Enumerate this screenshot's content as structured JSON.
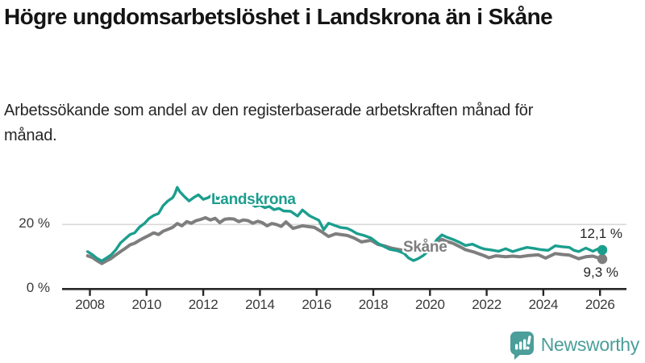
{
  "header": {
    "title": "Högre ungdomsarbetslöshet i Landskrona än i Skåne",
    "subtitle": "Arbetssökande som andel av den registerbaserade arbetskraften månad för månad."
  },
  "chart_data": {
    "type": "line",
    "title": "Högre ungdomsarbetslöshet i Landskrona än i Skåne",
    "subtitle": "Arbetssökande som andel av den registerbaserade arbetskraften månad för månad.",
    "unit": "%",
    "xlim": [
      2007.75,
      2026.6
    ],
    "ylim": [
      0,
      34
    ],
    "grid": "y-20-only",
    "x_ticks": [
      2008,
      2010,
      2012,
      2014,
      2016,
      2018,
      2020,
      2022,
      2024,
      2026
    ],
    "y_ticks": [
      {
        "value": 20,
        "label": "20 %"
      },
      {
        "value": 0,
        "label": "0 %"
      }
    ],
    "series": [
      {
        "name": "Landskrona",
        "color": "#1b9e8e",
        "end_label": "12,1 %",
        "end_value": 12.1,
        "points": [
          [
            2007.92,
            11.6
          ],
          [
            2008.08,
            10.7
          ],
          [
            2008.25,
            9.5
          ],
          [
            2008.42,
            8.7
          ],
          [
            2008.58,
            9.6
          ],
          [
            2008.75,
            10.6
          ],
          [
            2008.92,
            12.2
          ],
          [
            2009.08,
            14.3
          ],
          [
            2009.25,
            15.6
          ],
          [
            2009.42,
            16.9
          ],
          [
            2009.58,
            17.4
          ],
          [
            2009.75,
            19.2
          ],
          [
            2009.92,
            20.3
          ],
          [
            2010.08,
            21.8
          ],
          [
            2010.25,
            22.8
          ],
          [
            2010.42,
            23.4
          ],
          [
            2010.58,
            25.8
          ],
          [
            2010.75,
            27.3
          ],
          [
            2010.92,
            28.3
          ],
          [
            2011.0,
            29.5
          ],
          [
            2011.08,
            31.5
          ],
          [
            2011.17,
            30.2
          ],
          [
            2011.33,
            28.7
          ],
          [
            2011.5,
            27.3
          ],
          [
            2011.67,
            28.4
          ],
          [
            2011.83,
            29.2
          ],
          [
            2012.0,
            27.8
          ],
          [
            2012.17,
            28.3
          ],
          [
            2012.33,
            29.3
          ],
          [
            2012.5,
            28.0
          ],
          [
            2012.67,
            28.6
          ],
          [
            2012.83,
            27.4
          ],
          [
            2013.0,
            27.8
          ],
          [
            2013.17,
            26.7
          ],
          [
            2013.33,
            27.3
          ],
          [
            2013.5,
            26.2
          ],
          [
            2013.67,
            26.6
          ],
          [
            2013.83,
            25.6
          ],
          [
            2014.0,
            26.0
          ],
          [
            2014.17,
            25.2
          ],
          [
            2014.33,
            25.6
          ],
          [
            2014.5,
            24.6
          ],
          [
            2014.67,
            25.0
          ],
          [
            2014.83,
            24.2
          ],
          [
            2015.08,
            24.1
          ],
          [
            2015.33,
            22.6
          ],
          [
            2015.5,
            24.5
          ],
          [
            2015.75,
            22.7
          ],
          [
            2016.08,
            21.3
          ],
          [
            2016.25,
            18.4
          ],
          [
            2016.42,
            20.4
          ],
          [
            2016.58,
            19.9
          ],
          [
            2016.83,
            19.1
          ],
          [
            2017.08,
            18.8
          ],
          [
            2017.25,
            18.1
          ],
          [
            2017.42,
            17.2
          ],
          [
            2017.67,
            16.6
          ],
          [
            2017.92,
            15.8
          ],
          [
            2018.17,
            14.1
          ],
          [
            2018.33,
            13.4
          ],
          [
            2018.58,
            12.3
          ],
          [
            2018.83,
            11.9
          ],
          [
            2019.08,
            11.1
          ],
          [
            2019.25,
            9.6
          ],
          [
            2019.42,
            8.8
          ],
          [
            2019.58,
            9.4
          ],
          [
            2019.75,
            10.3
          ],
          [
            2019.92,
            11.6
          ],
          [
            2020.08,
            13.2
          ],
          [
            2020.25,
            15.4
          ],
          [
            2020.42,
            16.8
          ],
          [
            2020.58,
            16.1
          ],
          [
            2020.83,
            15.3
          ],
          [
            2021.08,
            14.3
          ],
          [
            2021.25,
            13.5
          ],
          [
            2021.5,
            13.9
          ],
          [
            2021.75,
            12.9
          ],
          [
            2021.92,
            12.4
          ],
          [
            2022.17,
            12.1
          ],
          [
            2022.42,
            11.7
          ],
          [
            2022.67,
            12.5
          ],
          [
            2022.92,
            11.6
          ],
          [
            2023.17,
            12.3
          ],
          [
            2023.42,
            12.9
          ],
          [
            2023.67,
            12.6
          ],
          [
            2023.92,
            12.2
          ],
          [
            2024.17,
            12.0
          ],
          [
            2024.42,
            13.4
          ],
          [
            2024.67,
            13.1
          ],
          [
            2024.92,
            12.9
          ],
          [
            2025.08,
            12.0
          ],
          [
            2025.25,
            11.6
          ],
          [
            2025.5,
            12.7
          ],
          [
            2025.75,
            11.7
          ],
          [
            2025.92,
            12.4
          ],
          [
            2026.08,
            12.1
          ]
        ]
      },
      {
        "name": "Skåne",
        "color": "#7e7e7e",
        "end_label": "9,3 %",
        "end_value": 9.3,
        "points": [
          [
            2007.92,
            10.3
          ],
          [
            2008.08,
            9.8
          ],
          [
            2008.25,
            8.8
          ],
          [
            2008.42,
            7.9
          ],
          [
            2008.58,
            8.7
          ],
          [
            2008.75,
            9.5
          ],
          [
            2008.92,
            10.6
          ],
          [
            2009.08,
            11.6
          ],
          [
            2009.25,
            12.6
          ],
          [
            2009.42,
            13.7
          ],
          [
            2009.58,
            14.2
          ],
          [
            2009.75,
            15.1
          ],
          [
            2009.92,
            15.9
          ],
          [
            2010.08,
            16.6
          ],
          [
            2010.25,
            17.4
          ],
          [
            2010.42,
            16.9
          ],
          [
            2010.58,
            17.9
          ],
          [
            2010.75,
            18.5
          ],
          [
            2010.92,
            19.1
          ],
          [
            2011.08,
            20.3
          ],
          [
            2011.25,
            19.6
          ],
          [
            2011.42,
            20.9
          ],
          [
            2011.58,
            20.4
          ],
          [
            2011.75,
            21.2
          ],
          [
            2011.92,
            21.6
          ],
          [
            2012.08,
            22.1
          ],
          [
            2012.25,
            21.4
          ],
          [
            2012.42,
            21.9
          ],
          [
            2012.58,
            20.6
          ],
          [
            2012.75,
            21.6
          ],
          [
            2012.92,
            21.8
          ],
          [
            2013.08,
            21.7
          ],
          [
            2013.25,
            20.9
          ],
          [
            2013.42,
            21.4
          ],
          [
            2013.58,
            21.2
          ],
          [
            2013.75,
            20.4
          ],
          [
            2013.92,
            21.0
          ],
          [
            2014.08,
            20.6
          ],
          [
            2014.25,
            19.6
          ],
          [
            2014.42,
            20.3
          ],
          [
            2014.58,
            20.0
          ],
          [
            2014.75,
            19.4
          ],
          [
            2014.92,
            20.8
          ],
          [
            2015.17,
            18.8
          ],
          [
            2015.5,
            19.6
          ],
          [
            2015.92,
            19.1
          ],
          [
            2016.17,
            17.8
          ],
          [
            2016.42,
            16.3
          ],
          [
            2016.67,
            17.1
          ],
          [
            2017.08,
            16.6
          ],
          [
            2017.33,
            15.8
          ],
          [
            2017.58,
            14.6
          ],
          [
            2017.92,
            15.1
          ],
          [
            2018.17,
            13.8
          ],
          [
            2018.42,
            13.3
          ],
          [
            2018.67,
            12.6
          ],
          [
            2018.92,
            12.2
          ],
          [
            2019.17,
            11.9
          ],
          [
            2019.42,
            11.6
          ],
          [
            2019.67,
            11.8
          ],
          [
            2019.92,
            12.4
          ],
          [
            2020.08,
            13.4
          ],
          [
            2020.25,
            14.6
          ],
          [
            2020.42,
            15.4
          ],
          [
            2020.58,
            14.8
          ],
          [
            2020.83,
            14.1
          ],
          [
            2021.08,
            13.0
          ],
          [
            2021.25,
            12.2
          ],
          [
            2021.58,
            11.4
          ],
          [
            2021.92,
            10.3
          ],
          [
            2022.08,
            9.7
          ],
          [
            2022.33,
            10.3
          ],
          [
            2022.67,
            10.0
          ],
          [
            2022.92,
            10.2
          ],
          [
            2023.17,
            10.0
          ],
          [
            2023.5,
            10.4
          ],
          [
            2023.83,
            10.6
          ],
          [
            2024.08,
            9.6
          ],
          [
            2024.42,
            11.0
          ],
          [
            2024.67,
            10.7
          ],
          [
            2024.92,
            10.5
          ],
          [
            2025.25,
            9.4
          ],
          [
            2025.5,
            10.0
          ],
          [
            2025.75,
            10.2
          ],
          [
            2025.92,
            9.7
          ],
          [
            2026.08,
            9.3
          ]
        ]
      }
    ],
    "legend_position": "inline-labels"
  },
  "branding": {
    "name": "Newsworthy",
    "icon": "bar-chart-speech-bubble-icon",
    "color": "#4b9e9a"
  },
  "colors": {
    "landskrona": "#1b9e8e",
    "skane": "#7e7e7e",
    "axis": "#262626",
    "gridline": "#d9d9d9"
  }
}
